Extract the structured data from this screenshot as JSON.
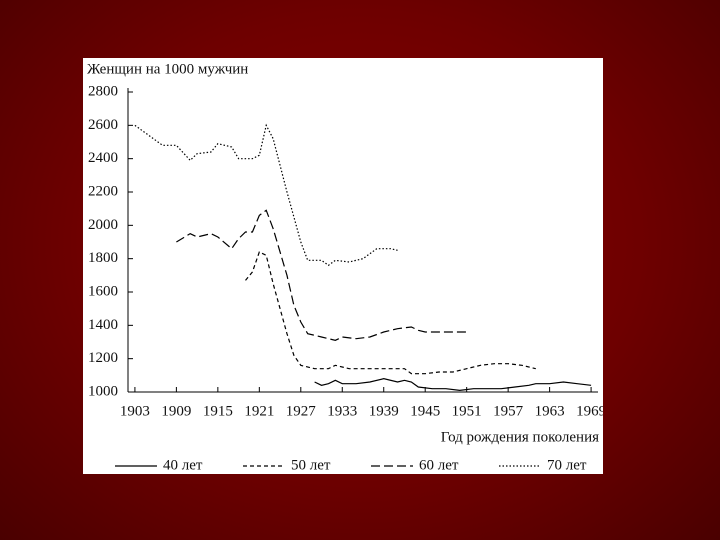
{
  "chart_data": {
    "type": "line",
    "title": "Женщин на 1000 мужчин",
    "x_label": "Год рождения поколения",
    "xlim": [
      1902,
      1970
    ],
    "xticks": [
      1903,
      1909,
      1915,
      1921,
      1927,
      1933,
      1939,
      1945,
      1951,
      1957,
      1963,
      1969
    ],
    "ylim": [
      1000,
      2800
    ],
    "yticks": [
      1000,
      1200,
      1400,
      1600,
      1800,
      2000,
      2200,
      2400,
      2600,
      2800
    ],
    "series": [
      {
        "name": "40 лет",
        "color": "#000000",
        "dash": "none",
        "x": [
          1929,
          1930,
          1931,
          1932,
          1933,
          1935,
          1937,
          1939,
          1941,
          1942,
          1943,
          1944,
          1946,
          1948,
          1950,
          1952,
          1954,
          1956,
          1958,
          1960,
          1961,
          1963,
          1965,
          1967,
          1969
        ],
        "values": [
          1060,
          1040,
          1050,
          1070,
          1050,
          1050,
          1060,
          1080,
          1060,
          1070,
          1060,
          1030,
          1020,
          1020,
          1010,
          1020,
          1020,
          1020,
          1030,
          1040,
          1050,
          1050,
          1060,
          1050,
          1040
        ]
      },
      {
        "name": "50 лет",
        "color": "#000000",
        "dash": "4,3",
        "x": [
          1919,
          1920,
          1921,
          1922,
          1923,
          1925,
          1926,
          1927,
          1929,
          1931,
          1932,
          1934,
          1936,
          1938,
          1940,
          1942,
          1943,
          1945,
          1947,
          1949,
          1951,
          1953,
          1955,
          1957,
          1959,
          1961
        ],
        "values": [
          1670,
          1720,
          1840,
          1820,
          1650,
          1350,
          1220,
          1160,
          1140,
          1140,
          1160,
          1140,
          1140,
          1140,
          1140,
          1140,
          1110,
          1110,
          1120,
          1120,
          1140,
          1160,
          1170,
          1170,
          1160,
          1140
        ]
      },
      {
        "name": "60 лет",
        "color": "#000000",
        "dash": "9,4",
        "x": [
          1909,
          1911,
          1912,
          1914,
          1915,
          1917,
          1918,
          1919,
          1920,
          1921,
          1922,
          1923,
          1925,
          1926,
          1927,
          1928,
          1930,
          1932,
          1933,
          1935,
          1937,
          1939,
          1941,
          1943,
          1944,
          1945,
          1947,
          1949,
          1951
        ],
        "values": [
          1900,
          1950,
          1930,
          1950,
          1930,
          1860,
          1920,
          1960,
          1960,
          2060,
          2090,
          1980,
          1700,
          1520,
          1420,
          1350,
          1330,
          1310,
          1330,
          1320,
          1330,
          1360,
          1380,
          1390,
          1370,
          1360,
          1360,
          1360,
          1360
        ]
      },
      {
        "name": "70 лет",
        "color": "#000000",
        "dash": "1.5,2",
        "x": [
          1903,
          1905,
          1907,
          1909,
          1911,
          1912,
          1914,
          1915,
          1917,
          1918,
          1920,
          1921,
          1922,
          1923,
          1925,
          1927,
          1928,
          1930,
          1931,
          1932,
          1934,
          1936,
          1938,
          1940,
          1941
        ],
        "values": [
          2600,
          2540,
          2480,
          2480,
          2390,
          2430,
          2440,
          2490,
          2470,
          2400,
          2400,
          2420,
          2600,
          2520,
          2200,
          1900,
          1790,
          1790,
          1760,
          1790,
          1780,
          1800,
          1860,
          1860,
          1850
        ]
      }
    ]
  }
}
